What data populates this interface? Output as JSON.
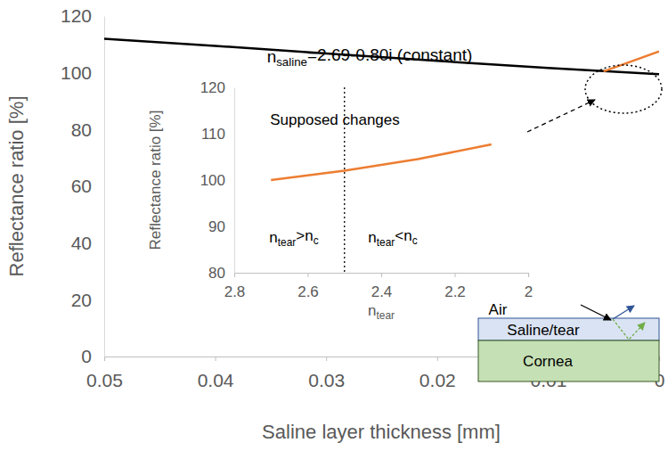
{
  "chart_data": [
    {
      "type": "line",
      "x_label": [
        {
          "t": "Saline layer thickness [mm]"
        }
      ],
      "y_label": [
        {
          "t": "Reflectance ratio [%]"
        }
      ],
      "xlim": [
        0.05,
        0
      ],
      "xticks": [
        0.05,
        0.04,
        0.03,
        0.02,
        0.01,
        0
      ],
      "ylim": [
        0,
        120
      ],
      "yticks": [
        0,
        20,
        40,
        60,
        80,
        100,
        120
      ],
      "series": [
        {
          "color": "#000000",
          "x": [
            0.05,
            0.04,
            0.03,
            0.02,
            0.01,
            0
          ],
          "values": [
            112,
            109.5,
            106.8,
            104.2,
            101.7,
            99.5
          ]
        },
        {
          "color": "#ed7d31",
          "x": [
            0.005,
            0
          ],
          "values": [
            100.5,
            107.5
          ]
        }
      ],
      "annotations": [
        {
          "parts": [
            {
              "t": "n"
            },
            {
              "t": "saline",
              "sub": true
            },
            {
              "t": "=2.69-0.80i (constant)"
            }
          ]
        }
      ]
    },
    {
      "type": "line",
      "title": "Supposed changes",
      "x_label": [
        {
          "t": "n"
        },
        {
          "t": "tear",
          "sub": true
        }
      ],
      "y_label": [
        {
          "t": "Reflectance ratio [%]"
        }
      ],
      "xlim": [
        2.8,
        2
      ],
      "xticks": [
        2.8,
        2.6,
        2.4,
        2.2,
        2
      ],
      "ylim": [
        80,
        120
      ],
      "yticks": [
        80,
        90,
        100,
        110,
        120
      ],
      "series": [
        {
          "color": "#ed7d31",
          "x": [
            2.7,
            2.5,
            2.3,
            2.1
          ],
          "values": [
            100,
            102,
            104.5,
            107.7
          ]
        }
      ],
      "vlines": [
        2.5
      ],
      "annotations": [
        {
          "parts": [
            {
              "t": "n"
            },
            {
              "t": "tear",
              "sub": true
            },
            {
              "t": ">"
            },
            {
              "t": "n"
            },
            {
              "t": "c",
              "sub": true
            }
          ]
        },
        {
          "parts": [
            {
              "t": "n"
            },
            {
              "t": "tear",
              "sub": true
            },
            {
              "t": "<"
            },
            {
              "t": "n"
            },
            {
              "t": "c",
              "sub": true
            }
          ]
        }
      ],
      "diagram_layers": [
        "Air",
        "Saline/tear",
        "Cornea"
      ]
    }
  ]
}
